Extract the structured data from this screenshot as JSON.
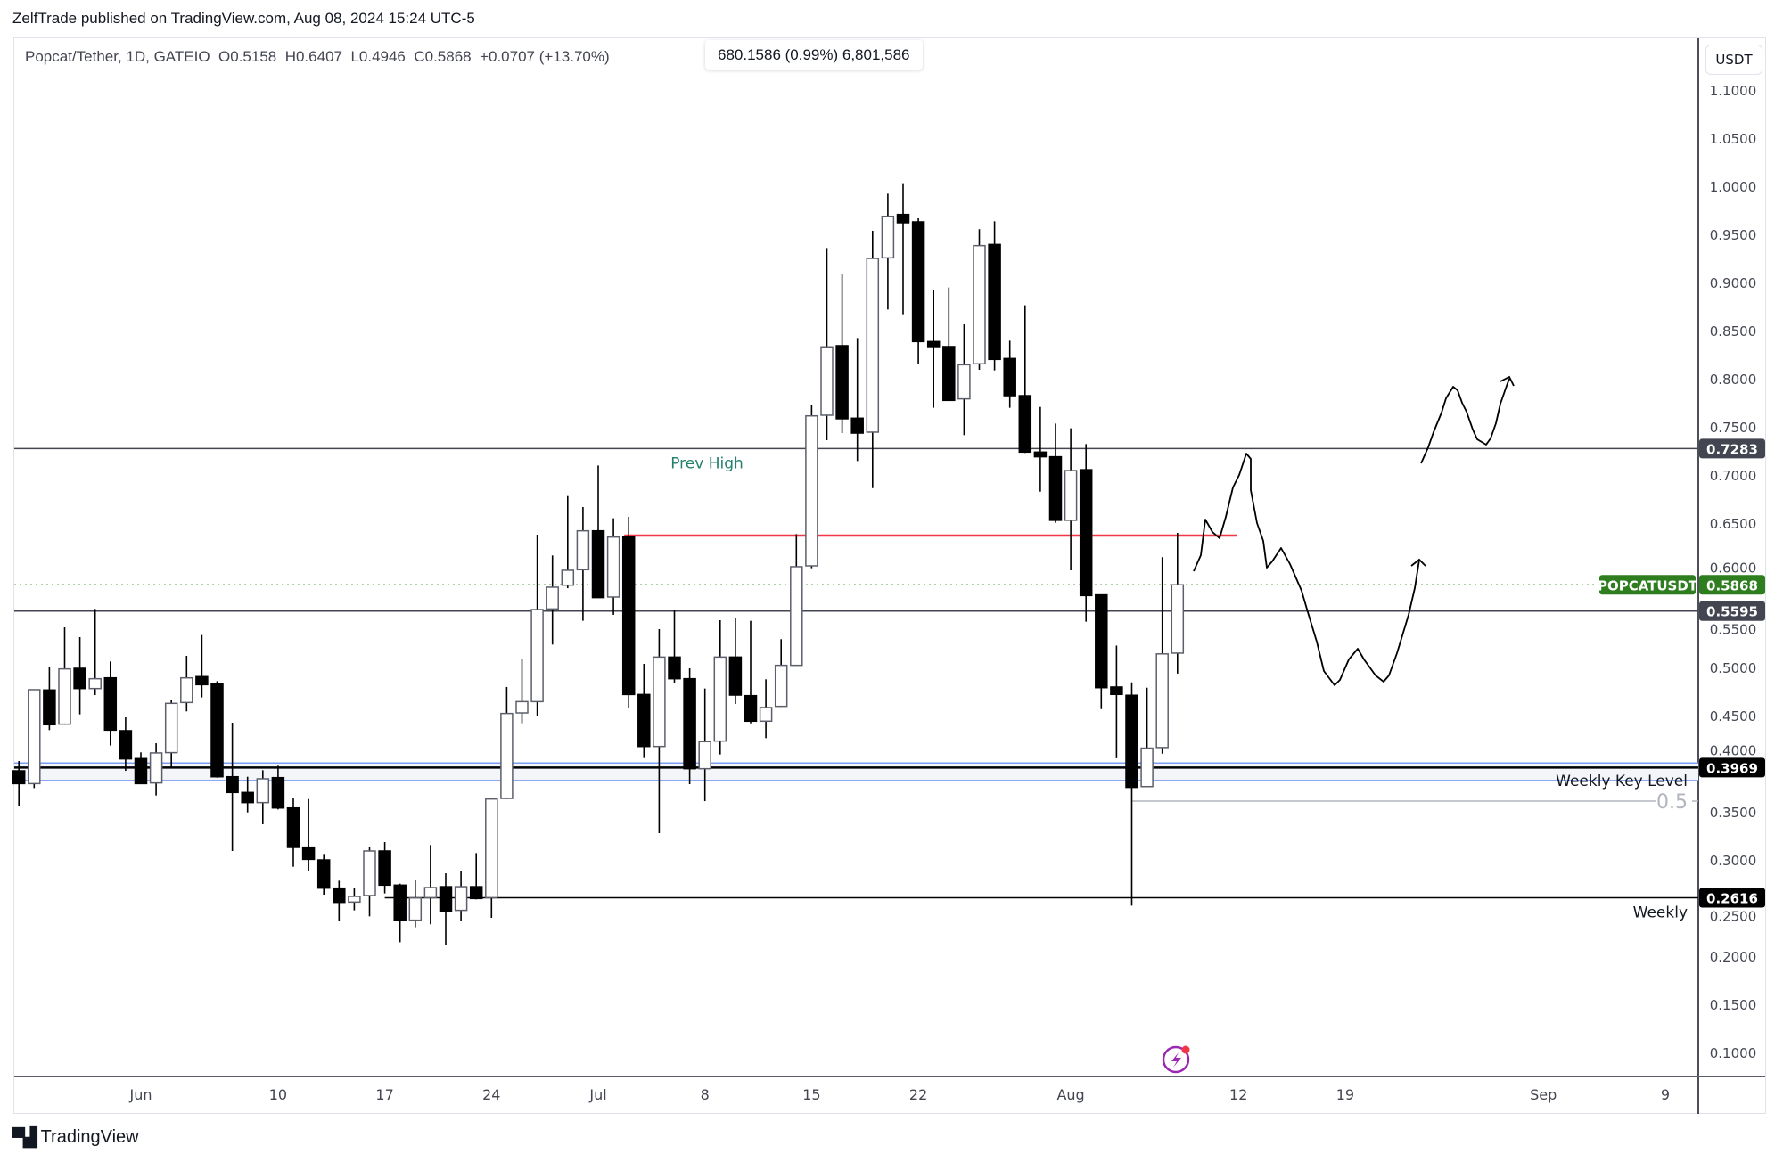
{
  "header": {
    "published": "ZelfTrade published on TradingView.com, Aug 08, 2024 15:24 UTC-5"
  },
  "legend": {
    "symbol": "Popcat/Tether, 1D, GATEIO",
    "open": "O0.5158",
    "high": "H0.6407",
    "low": "L0.4946",
    "close": "C0.5868",
    "change": "+0.0707 (+13.70%)"
  },
  "volume_tooltip": "680.1586 (0.99%) 6,801,586",
  "currency_button": "USDT",
  "footer": {
    "brand": "TradingView",
    "logo_mark": "TV"
  },
  "icons": {
    "lightning": "lightning-icon"
  },
  "colors": {
    "up_fill": "#ffffff",
    "up_border": "#5d606b",
    "down": "#000000",
    "red_level": "#f23645",
    "green_tag": "#2e7d1f",
    "dark_tag": "#434651",
    "prev_high_text": "#22806b",
    "band_line": "#7b9df2"
  },
  "chart_data": {
    "type": "candlestick",
    "title": "Popcat/Tether, 1D, GATEIO",
    "ylabel": "USDT",
    "ylim": [
      0.08,
      1.125
    ],
    "start_date": "2024-05-24",
    "ohlc": [
      [
        0.3935,
        0.4037,
        0.3565,
        0.3802
      ],
      [
        0.3802,
        0.4778,
        0.3756,
        0.4778
      ],
      [
        0.4775,
        0.5015,
        0.4358,
        0.4414
      ],
      [
        0.442,
        0.5426,
        0.4414,
        0.4994
      ],
      [
        0.5,
        0.5324,
        0.4522,
        0.479
      ],
      [
        0.479,
        0.5617,
        0.4722,
        0.4892
      ],
      [
        0.4901,
        0.5071,
        0.4198,
        0.4358
      ],
      [
        0.4352,
        0.4491,
        0.3935,
        0.4059
      ],
      [
        0.4062,
        0.4127,
        0.3796,
        0.3802
      ],
      [
        0.3809,
        0.4222,
        0.3679,
        0.4121
      ],
      [
        0.4124,
        0.4676,
        0.3966,
        0.4636
      ],
      [
        0.4645,
        0.513,
        0.4553,
        0.4901
      ],
      [
        0.4914,
        0.5346,
        0.4698,
        0.483
      ],
      [
        0.484,
        0.4867,
        0.3864,
        0.3873
      ],
      [
        0.3873,
        0.4435,
        0.3102,
        0.371
      ],
      [
        0.371,
        0.3873,
        0.3503,
        0.3605
      ],
      [
        0.3605,
        0.3941,
        0.338,
        0.3852
      ],
      [
        0.3864,
        0.3988,
        0.3534,
        0.3549
      ],
      [
        0.3549,
        0.3648,
        0.2938,
        0.3139
      ],
      [
        0.3142,
        0.3642,
        0.2895,
        0.3015
      ],
      [
        0.3009,
        0.3071,
        0.2648,
        0.2716
      ],
      [
        0.2716,
        0.2793,
        0.2377,
        0.2568
      ],
      [
        0.2571,
        0.2716,
        0.2485,
        0.263
      ],
      [
        0.2639,
        0.3148,
        0.2423,
        0.3102
      ],
      [
        0.3102,
        0.3194,
        0.2661,
        0.2747
      ],
      [
        0.2747,
        0.2762,
        0.2154,
        0.2386
      ],
      [
        0.2383,
        0.2799,
        0.2309,
        0.2614
      ],
      [
        0.2617,
        0.3164,
        0.234,
        0.2722
      ],
      [
        0.2731,
        0.287,
        0.2123,
        0.2478
      ],
      [
        0.2485,
        0.2895,
        0.2377,
        0.2731
      ],
      [
        0.2731,
        0.308,
        0.2599,
        0.2608
      ],
      [
        0.2617,
        0.3657,
        0.2407,
        0.3642
      ],
      [
        0.3648,
        0.4806,
        0.3642,
        0.4531
      ],
      [
        0.4537,
        0.5099,
        0.4429,
        0.4654
      ],
      [
        0.4654,
        0.6389,
        0.4506,
        0.5611
      ],
      [
        0.5617,
        0.6173,
        0.5247,
        0.5843
      ],
      [
        0.5864,
        0.679,
        0.5833,
        0.6019
      ],
      [
        0.6025,
        0.6676,
        0.5494,
        0.6429
      ],
      [
        0.6429,
        0.7108,
        0.5735,
        0.5735
      ],
      [
        0.5741,
        0.6559,
        0.5556,
        0.6364
      ],
      [
        0.6364,
        0.6574,
        0.4583,
        0.4728
      ],
      [
        0.4728,
        0.5046,
        0.4068,
        0.4188
      ],
      [
        0.4188,
        0.5407,
        0.3287,
        0.5117
      ],
      [
        0.5117,
        0.5611,
        0.4846,
        0.4892
      ],
      [
        0.4892,
        0.5,
        0.3796,
        0.3957
      ],
      [
        0.3957,
        0.479,
        0.362,
        0.4238
      ],
      [
        0.4244,
        0.55,
        0.4105,
        0.5117
      ],
      [
        0.5117,
        0.5525,
        0.463,
        0.4722
      ],
      [
        0.4716,
        0.5494,
        0.4429,
        0.4451
      ],
      [
        0.4451,
        0.4886,
        0.4275,
        0.4593
      ],
      [
        0.4605,
        0.5303,
        0.4599,
        0.5031
      ],
      [
        0.5031,
        0.6395,
        0.5025,
        0.6056
      ],
      [
        0.6065,
        0.7741,
        0.604,
        0.7623
      ],
      [
        0.763,
        0.9367,
        0.737,
        0.834
      ],
      [
        0.8352,
        0.9096,
        0.7444,
        0.7593
      ],
      [
        0.7599,
        0.8432,
        0.7154,
        0.7444
      ],
      [
        0.7454,
        0.9546,
        0.6873,
        0.9259
      ],
      [
        0.9265,
        0.9932,
        0.8728,
        0.9697
      ],
      [
        0.9716,
        1.004,
        0.8679,
        0.963
      ],
      [
        0.9639,
        0.9676,
        0.8164,
        0.8395
      ],
      [
        0.8395,
        0.8935,
        0.7707,
        0.8343
      ],
      [
        0.8343,
        0.8957,
        0.7784,
        0.7784
      ],
      [
        0.78,
        0.8574,
        0.7423,
        0.8154
      ],
      [
        0.8164,
        0.9562,
        0.8102,
        0.9392
      ],
      [
        0.9404,
        0.9645,
        0.8096,
        0.821
      ],
      [
        0.8219,
        0.8404,
        0.7707,
        0.7833
      ],
      [
        0.7833,
        0.8772,
        0.7238,
        0.7247
      ],
      [
        0.7247,
        0.7716,
        0.6836,
        0.7198
      ],
      [
        0.7198,
        0.7543,
        0.6512,
        0.6538
      ],
      [
        0.6538,
        0.7494,
        0.6018,
        0.7055
      ],
      [
        0.7064,
        0.733,
        0.5485,
        0.5756
      ],
      [
        0.5763,
        0.5763,
        0.4576,
        0.4799
      ],
      [
        0.4806,
        0.5236,
        0.4066,
        0.4729
      ],
      [
        0.472,
        0.4854,
        0.2534,
        0.3763
      ],
      [
        0.3771,
        0.4799,
        0.3765,
        0.4171
      ],
      [
        0.4177,
        0.6155,
        0.4113,
        0.515
      ],
      [
        0.5158,
        0.6407,
        0.4946,
        0.5868
      ]
    ],
    "y_ticks": [
      "1.1000",
      "1.0500",
      "1.0000",
      "0.9500",
      "0.9000",
      "0.8500",
      "0.8000",
      "0.7500",
      "0.7000",
      "0.6500",
      "0.6000",
      "0.5500",
      "0.5000",
      "0.4500",
      "0.4000",
      "0.3500",
      "0.3000",
      "0.2500",
      "0.2000",
      "0.1500",
      "0.1000"
    ],
    "x_ticks": [
      {
        "label": "Jun",
        "date": "2024-06-01"
      },
      {
        "label": "10",
        "date": "2024-06-10"
      },
      {
        "label": "17",
        "date": "2024-06-17"
      },
      {
        "label": "24",
        "date": "2024-06-24"
      },
      {
        "label": "Jul",
        "date": "2024-07-01"
      },
      {
        "label": "8",
        "date": "2024-07-08"
      },
      {
        "label": "15",
        "date": "2024-07-15"
      },
      {
        "label": "22",
        "date": "2024-07-22"
      },
      {
        "label": "Aug",
        "date": "2024-08-01"
      },
      {
        "label": "12",
        "date": "2024-08-12"
      },
      {
        "label": "19",
        "date": "2024-08-19"
      },
      {
        "label": "Sep",
        "date": "2024-09-01"
      },
      {
        "label": "9",
        "date": "2024-09-09"
      }
    ],
    "levels": {
      "prev_high": {
        "price": 0.7283,
        "tag": "0.7283",
        "text": "Prev High"
      },
      "red_line": {
        "price": 0.638,
        "from": "2024-07-03",
        "to": "2024-08-12"
      },
      "current": {
        "price": 0.5868,
        "tag": "0.5868",
        "symbol_tag": "POPCATUSDT"
      },
      "support": {
        "price": 0.5595,
        "tag": "0.5595"
      },
      "weekly_key": {
        "price": 0.3969,
        "band": [
          0.3835,
          0.4016
        ],
        "tag": "0.3969",
        "text": "Weekly Key Level"
      },
      "fib": {
        "price": 0.362,
        "text": "0.5",
        "from": "2024-08-05"
      },
      "weekly": {
        "price": 0.2616,
        "tag": "0.2616",
        "text": "Weekly",
        "from": "2024-06-17"
      }
    }
  }
}
